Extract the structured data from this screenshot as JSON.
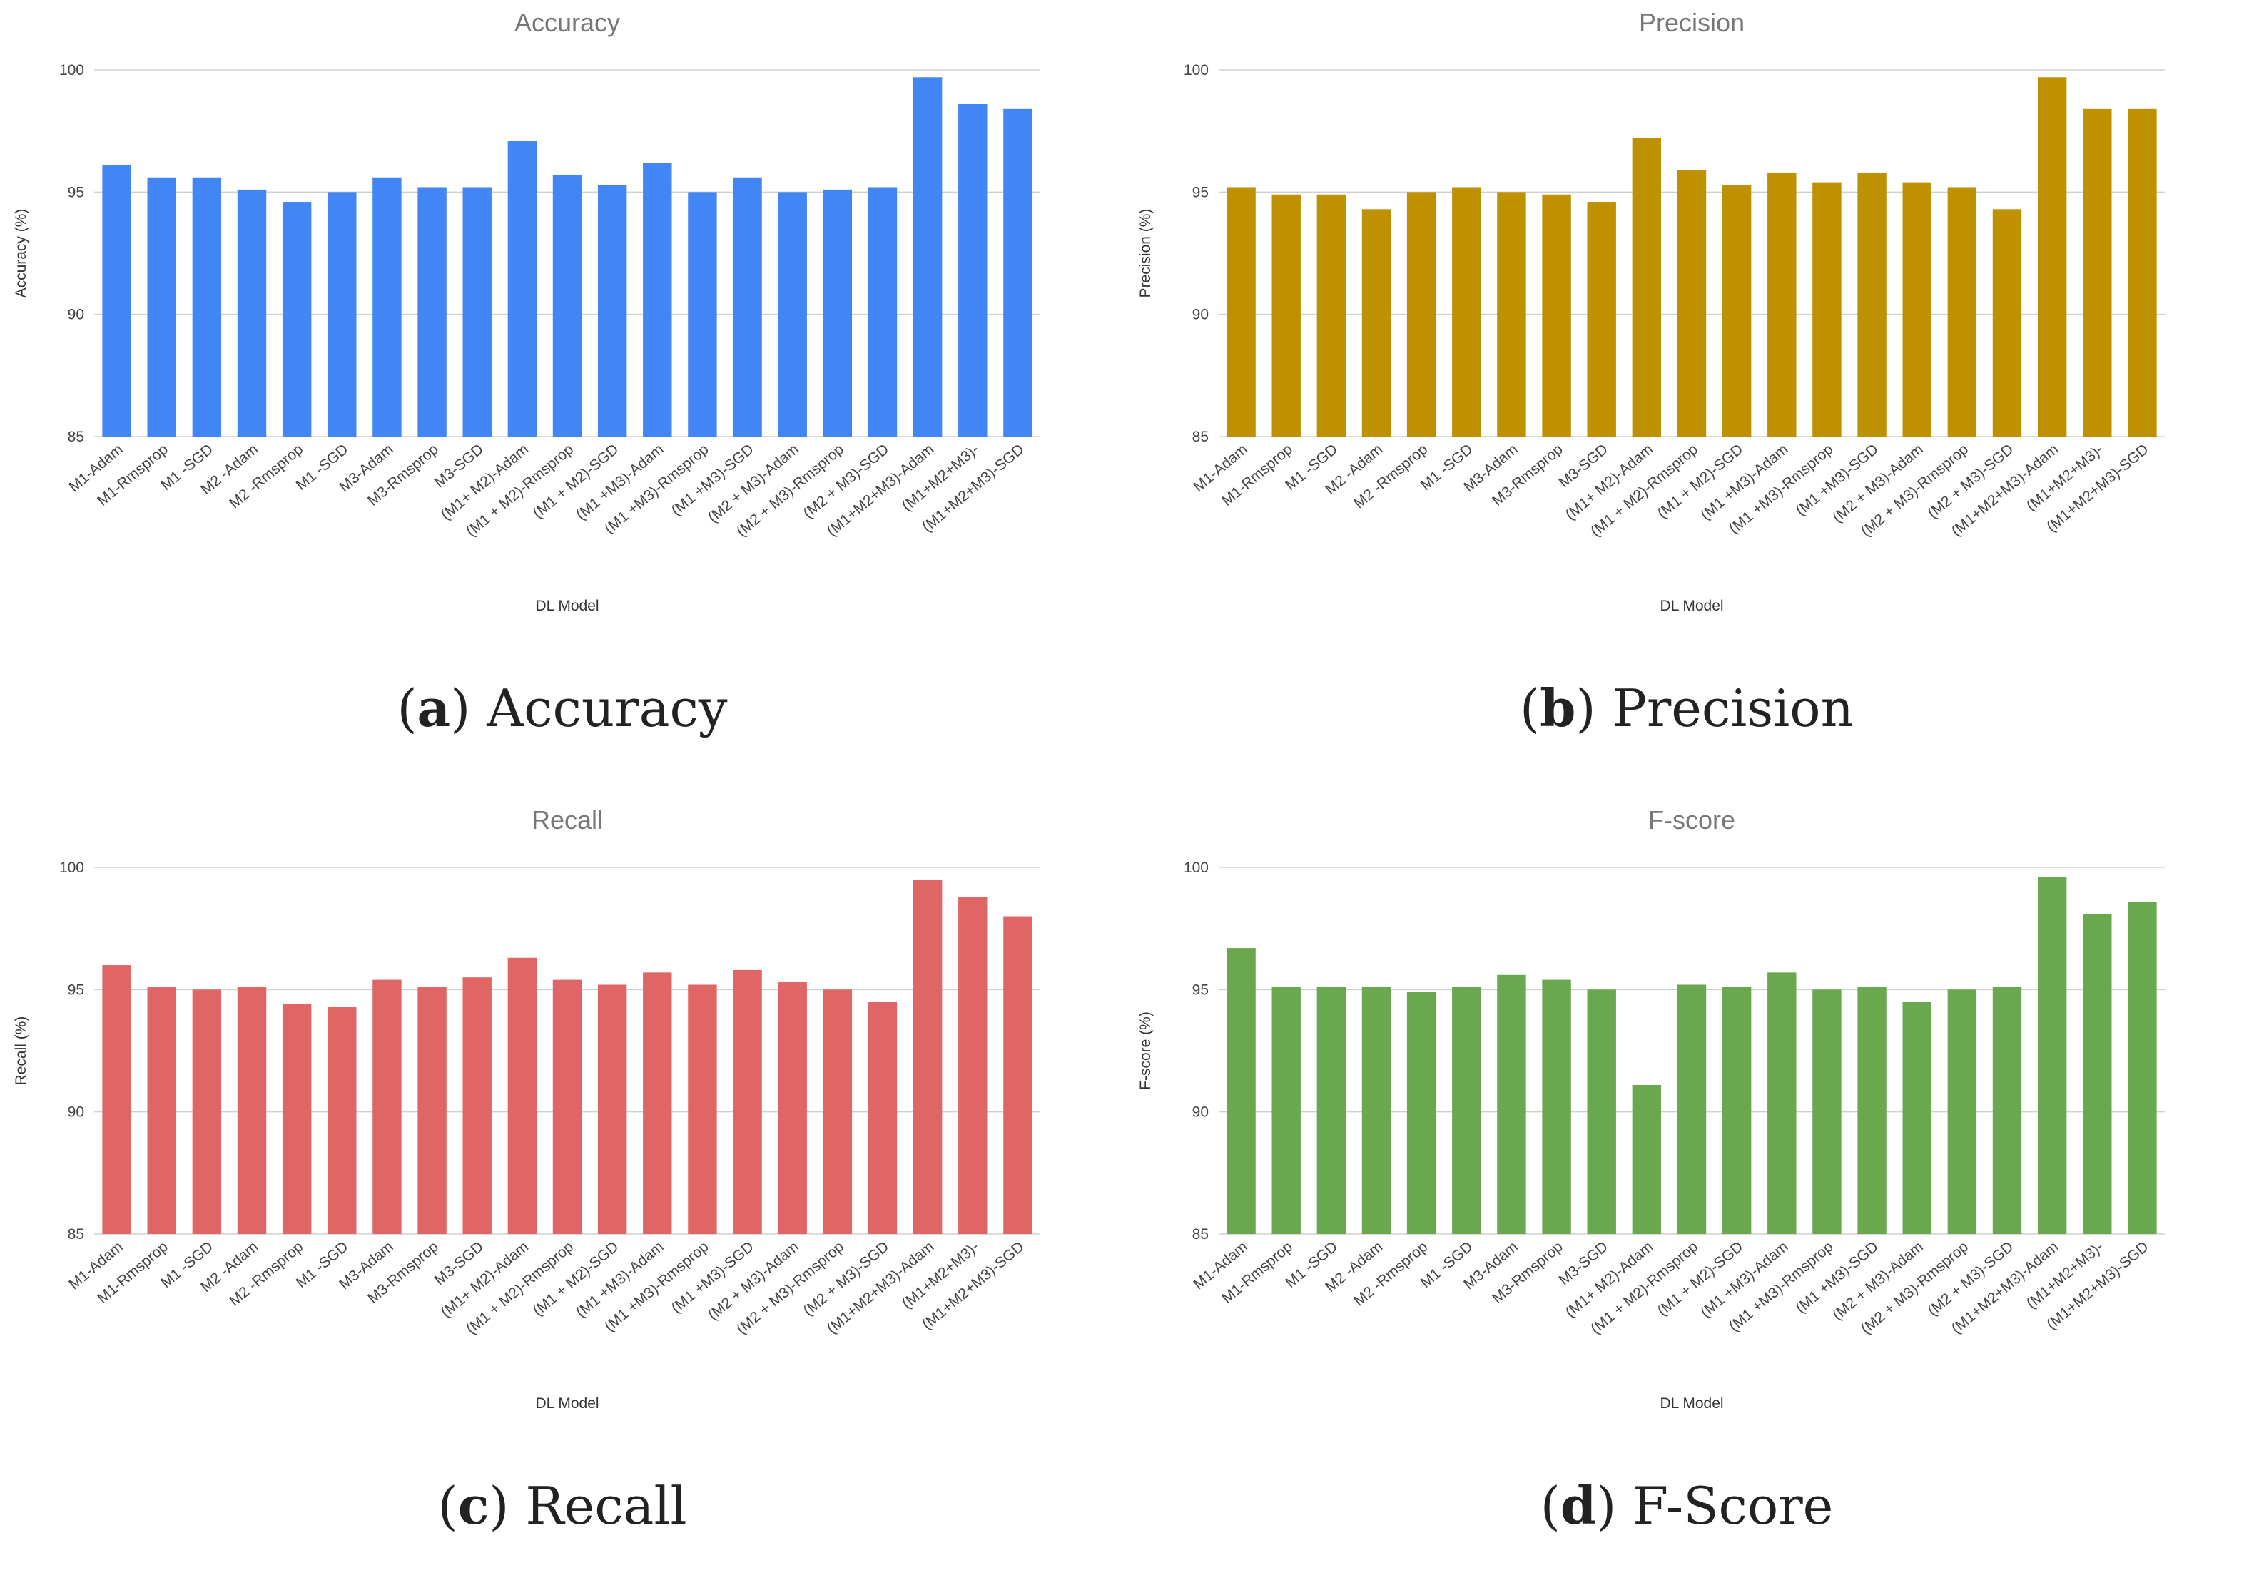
{
  "chart_data": [
    {
      "type": "bar",
      "title": "Accuracy",
      "caption_letter": "a",
      "caption_text": "Accuracy",
      "xlabel": "DL Model",
      "ylabel": "Accuracy (%)",
      "ylim": [
        85,
        100
      ],
      "yticks": [
        85,
        90,
        95,
        100
      ],
      "color": "#4285f4",
      "categories": [
        "M1-Adam",
        "M1-Rmsprop",
        "M1 -SGD",
        "M2 -Adam",
        "M2 -Rmsprop",
        "M1 -SGD",
        "M3-Adam",
        "M3-Rmsprop",
        "M3-SGD",
        "(M1+ M2)-Adam",
        "(M1 + M2)-Rmsprop",
        "(M1 + M2)-SGD",
        "(M1 +M3)-Adam",
        "(M1 +M3)-Rmsprop",
        "(M1 +M3)-SGD",
        "(M2 + M3)-Adam",
        "(M2 + M3)-Rmsprop",
        "(M2 + M3)-SGD",
        "(M1+M2+M3)-Adam",
        "(M1+M2+M3)-",
        "(M1+M2+M3)-SGD"
      ],
      "values": [
        96.1,
        95.6,
        95.6,
        95.1,
        94.6,
        95.0,
        95.6,
        95.2,
        95.2,
        97.1,
        95.7,
        95.3,
        96.2,
        95.0,
        95.6,
        95.0,
        95.1,
        95.2,
        99.7,
        98.6,
        98.4
      ]
    },
    {
      "type": "bar",
      "title": "Precision",
      "caption_letter": "b",
      "caption_text": "Precision",
      "xlabel": "DL Model",
      "ylabel": "Precision (%)",
      "ylim": [
        85,
        100
      ],
      "yticks": [
        85,
        90,
        95,
        100
      ],
      "color": "#bf9000",
      "categories": [
        "M1-Adam",
        "M1-Rmsprop",
        "M1 -SGD",
        "M2 -Adam",
        "M2 -Rmsprop",
        "M1 -SGD",
        "M3-Adam",
        "M3-Rmsprop",
        "M3-SGD",
        "(M1+ M2)-Adam",
        "(M1 + M2)-Rmsprop",
        "(M1 + M2)-SGD",
        "(M1 +M3)-Adam",
        "(M1 +M3)-Rmsprop",
        "(M1 +M3)-SGD",
        "(M2 + M3)-Adam",
        "(M2 + M3)-Rmsprop",
        "(M2 + M3)-SGD",
        "(M1+M2+M3)-Adam",
        "(M1+M2+M3)-",
        "(M1+M2+M3)-SGD"
      ],
      "values": [
        95.2,
        94.9,
        94.9,
        94.3,
        95.0,
        95.2,
        95.0,
        94.9,
        94.6,
        97.2,
        95.9,
        95.3,
        95.8,
        95.4,
        95.8,
        95.4,
        95.2,
        94.3,
        99.7,
        98.4,
        98.4
      ]
    },
    {
      "type": "bar",
      "title": "Recall",
      "caption_letter": "c",
      "caption_text": "Recall",
      "xlabel": "DL Model",
      "ylabel": "Recall (%)",
      "ylim": [
        85,
        100
      ],
      "yticks": [
        85,
        90,
        95,
        100
      ],
      "color": "#e06666",
      "categories": [
        "M1-Adam",
        "M1-Rmsprop",
        "M1 -SGD",
        "M2 -Adam",
        "M2 -Rmsprop",
        "M1 -SGD",
        "M3-Adam",
        "M3-Rmsprop",
        "M3-SGD",
        "(M1+ M2)-Adam",
        "(M1 + M2)-Rmsprop",
        "(M1 + M2)-SGD",
        "(M1 +M3)-Adam",
        "(M1 +M3)-Rmsprop",
        "(M1 +M3)-SGD",
        "(M2 + M3)-Adam",
        "(M2 + M3)-Rmsprop",
        "(M2 + M3)-SGD",
        "(M1+M2+M3)-Adam",
        "(M1+M2+M3)-",
        "(M1+M2+M3)-SGD"
      ],
      "values": [
        96.0,
        95.1,
        95.0,
        95.1,
        94.4,
        94.3,
        95.4,
        95.1,
        95.5,
        96.3,
        95.4,
        95.2,
        95.7,
        95.2,
        95.8,
        95.3,
        95.0,
        94.5,
        99.5,
        98.8,
        98.0
      ]
    },
    {
      "type": "bar",
      "title": "F-score",
      "caption_letter": "d",
      "caption_text": "F-Score",
      "xlabel": "DL Model",
      "ylabel": "F-score (%)",
      "ylim": [
        85,
        100
      ],
      "yticks": [
        85,
        90,
        95,
        100
      ],
      "color": "#6aa84f",
      "categories": [
        "M1-Adam",
        "M1-Rmsprop",
        "M1 -SGD",
        "M2 -Adam",
        "M2 -Rmsprop",
        "M1 -SGD",
        "M3-Adam",
        "M3-Rmsprop",
        "M3-SGD",
        "(M1+ M2)-Adam",
        "(M1 + M2)-Rmsprop",
        "(M1 + M2)-SGD",
        "(M1 +M3)-Adam",
        "(M1 +M3)-Rmsprop",
        "(M1 +M3)-SGD",
        "(M2 + M3)-Adam",
        "(M2 + M3)-Rmsprop",
        "(M2 + M3)-SGD",
        "(M1+M2+M3)-Adam",
        "(M1+M2+M3)-",
        "(M1+M2+M3)-SGD"
      ],
      "values": [
        96.7,
        95.1,
        95.1,
        95.1,
        94.9,
        95.1,
        95.6,
        95.4,
        95.0,
        91.1,
        95.2,
        95.1,
        95.7,
        95.0,
        95.1,
        94.5,
        95.0,
        95.1,
        99.6,
        98.1,
        98.6
      ]
    }
  ]
}
